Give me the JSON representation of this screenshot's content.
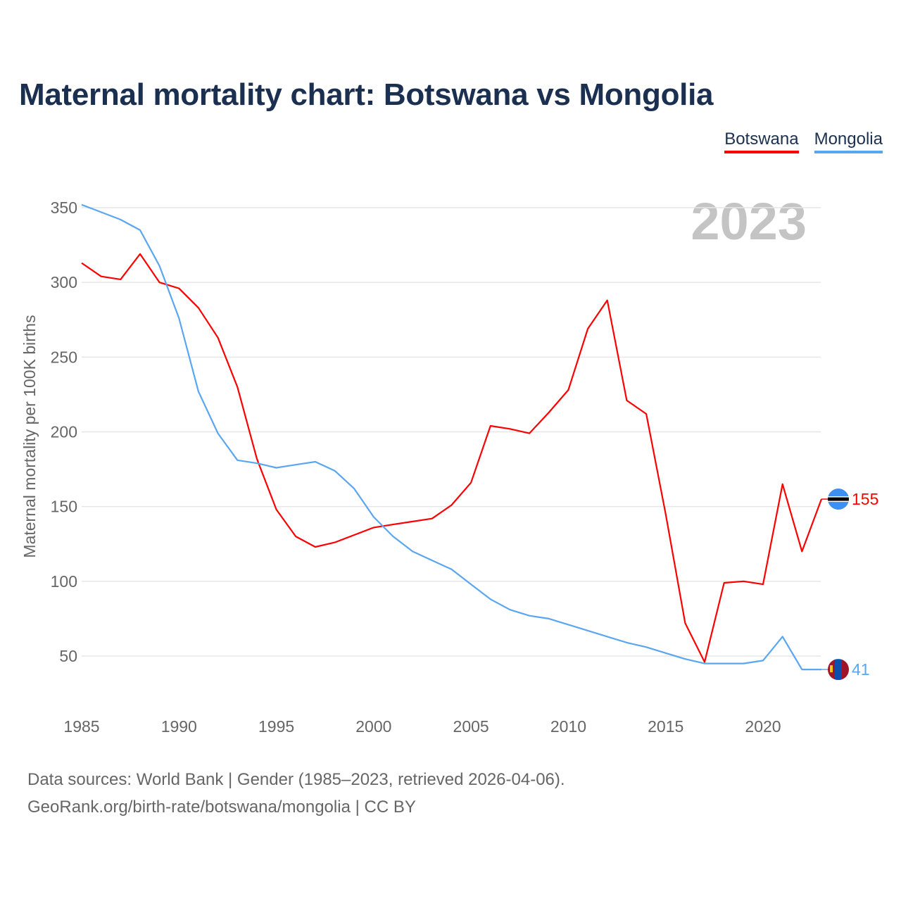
{
  "chart_data": {
    "type": "line",
    "title": "Maternal mortality chart: Botswana vs Mongolia",
    "ylabel": "Maternal mortality per 100K births",
    "xlabel": "",
    "xlim": [
      1985,
      2023
    ],
    "ylim": [
      20,
      360
    ],
    "xticks": [
      1985,
      1990,
      1995,
      2000,
      2005,
      2010,
      2015,
      2020
    ],
    "yticks": [
      50,
      100,
      150,
      200,
      250,
      300,
      350
    ],
    "grid": true,
    "legend_position": "top-right",
    "year_watermark": "2023",
    "x": [
      1985,
      1986,
      1987,
      1988,
      1989,
      1990,
      1991,
      1992,
      1993,
      1994,
      1995,
      1996,
      1997,
      1998,
      1999,
      2000,
      2001,
      2002,
      2003,
      2004,
      2005,
      2006,
      2007,
      2008,
      2009,
      2010,
      2011,
      2012,
      2013,
      2014,
      2015,
      2016,
      2017,
      2018,
      2019,
      2020,
      2021,
      2022,
      2023
    ],
    "series": [
      {
        "name": "Botswana",
        "color": "#ff0000",
        "end_label": "155",
        "values": [
          313,
          304,
          302,
          319,
          300,
          296,
          283,
          263,
          230,
          182,
          148,
          130,
          123,
          126,
          131,
          136,
          138,
          140,
          142,
          151,
          166,
          204,
          202,
          199,
          213,
          228,
          269,
          288,
          221,
          212,
          145,
          72,
          46,
          99,
          100,
          98,
          165,
          120,
          155
        ]
      },
      {
        "name": "Mongolia",
        "color": "#5aa6f0",
        "end_label": "41",
        "values": [
          352,
          347,
          342,
          335,
          311,
          276,
          227,
          199,
          181,
          179,
          176,
          178,
          180,
          174,
          162,
          143,
          130,
          120,
          114,
          108,
          98,
          88,
          81,
          77,
          75,
          71,
          67,
          63,
          59,
          56,
          52,
          48,
          45,
          45,
          45,
          47,
          63,
          41,
          41
        ]
      }
    ]
  },
  "footer": {
    "line1": "Data sources: World Bank | Gender (1985–2023, retrieved 2026-04-06).",
    "line2": "GeoRank.org/birth-rate/botswana/mongolia | CC BY"
  }
}
